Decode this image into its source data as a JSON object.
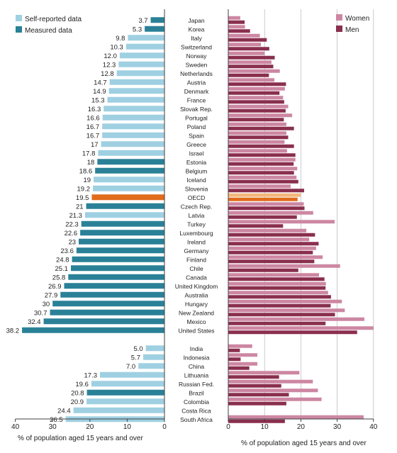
{
  "colors": {
    "self_reported": "#9fd0e2",
    "measured": "#2a8197",
    "oecd_highlight": "#e06c1c",
    "oecd_highlight_light": "#f3b87c",
    "women": "#cd87a2",
    "men": "#8a2f4e",
    "gridline": "#bfbfbf",
    "axis": "#404040"
  },
  "chart_data": [
    {
      "type": "bar",
      "orientation": "horizontal",
      "direction": "right-to-left",
      "legend": [
        "Self-reported data",
        "Measured data"
      ],
      "legend_position": "top-left",
      "xlabel": "% of population aged 15 years and over",
      "xlim": [
        0,
        40
      ],
      "xticks": [
        "40",
        "30",
        "20",
        "10",
        "0"
      ],
      "grid": false,
      "value_labels": true,
      "groups": [
        {
          "countries": [
            "Japan",
            "Korea",
            "Italy",
            "Switzerland",
            "Norway",
            "Sweden",
            "Netherlands",
            "Austria",
            "Denmark",
            "France",
            "Slovak Rep.",
            "Portugal",
            "Poland",
            "Spain",
            "Greece",
            "Israel",
            "Estonia",
            "Belgium",
            "Iceland",
            "Slovenia",
            "OECD",
            "Czech Rep.",
            "Latvia",
            "Turkey",
            "Luxembourg",
            "Ireland",
            "Germany",
            "Finland",
            "Chile",
            "Canada",
            "United Kingdom",
            "Australia",
            "Hungary",
            "New Zealand",
            "Mexico",
            "United States"
          ],
          "value_labels": [
            "3.7",
            "5.3",
            "9.8",
            "10.3",
            "12.0",
            "12.3",
            "12.8",
            "14.7",
            "14.9",
            "15.3",
            "16.3",
            "16.6",
            "16.7",
            "16.7",
            "17",
            "17.8",
            "18",
            "18.6",
            "19",
            "19.2",
            "19.5",
            "21",
            "21.3",
            "22.3",
            "22.6",
            "23",
            "23.6",
            "24.8",
            "25.1",
            "25.8",
            "26.9",
            "27.9",
            "30",
            "30.7",
            "32.4",
            "38.2"
          ],
          "values": [
            3.7,
            5.3,
            9.8,
            10.3,
            12.0,
            12.3,
            12.8,
            14.7,
            14.9,
            15.3,
            16.3,
            16.6,
            16.7,
            16.7,
            17,
            17.8,
            18,
            18.6,
            19,
            19.2,
            19.5,
            21,
            21.3,
            22.3,
            22.6,
            23,
            23.6,
            24.8,
            25.1,
            25.8,
            26.9,
            27.9,
            30,
            30.7,
            32.4,
            38.2
          ],
          "data_type": [
            "measured",
            "measured",
            "self",
            "self",
            "self",
            "self",
            "self",
            "self",
            "self",
            "self",
            "self",
            "self",
            "self",
            "self",
            "self",
            "self",
            "measured",
            "measured",
            "self",
            "self",
            "oecd",
            "measured",
            "self",
            "measured",
            "measured",
            "measured",
            "measured",
            "measured",
            "measured",
            "measured",
            "measured",
            "measured",
            "measured",
            "measured",
            "measured",
            "measured"
          ]
        },
        {
          "countries": [
            "India",
            "Indonesia",
            "China",
            "Lithuania",
            "Russian Fed.",
            "Brazil",
            "Colombia",
            "Costa Rica",
            "South Africa"
          ],
          "value_labels": [
            "5.0",
            "5.7",
            "7.0",
            "17.3",
            "19.6",
            "20.8",
            "20.9",
            "24.4",
            "26.5"
          ],
          "values": [
            5.0,
            5.7,
            7.0,
            17.3,
            19.6,
            20.8,
            20.9,
            24.4,
            26.5
          ],
          "data_type": [
            "self",
            "self",
            "self",
            "self",
            "self",
            "measured",
            "self",
            "self",
            "self"
          ]
        }
      ]
    },
    {
      "type": "bar",
      "orientation": "horizontal",
      "direction": "left-to-right",
      "legend": [
        "Women",
        "Men"
      ],
      "legend_position": "top-right",
      "xlabel": "% of population aged 15 years and over",
      "xlim": [
        0,
        40
      ],
      "xticks": [
        "0",
        "10",
        "20",
        "30",
        "40"
      ],
      "grid": true,
      "series": [
        {
          "name": "Women",
          "values": [
            3.3,
            4.6,
            8.7,
            9.0,
            10.0,
            11.9,
            14.2,
            12.7,
            15.6,
            15.1,
            16.5,
            17.6,
            16.0,
            16.0,
            15.5,
            16.2,
            18.5,
            19.0,
            18.8,
            17.2,
            19.9,
            20.8,
            23.4,
            29.3,
            21.5,
            22.3,
            24.2,
            26.0,
            30.8,
            25.0,
            26.9,
            27.5,
            31.3,
            32.1,
            37.5,
            40.0,
            6.6,
            8.0,
            8.0,
            19.6,
            23.3,
            24.7,
            25.7,
            null,
            37.3
          ]
        },
        {
          "name": "Men",
          "values": [
            4.5,
            6.0,
            10.6,
            11.3,
            12.8,
            12.4,
            11.2,
            15.9,
            14.1,
            15.4,
            15.8,
            15.3,
            18.1,
            16.5,
            18.1,
            18.5,
            18.0,
            18.1,
            19.3,
            20.9,
            19.1,
            21.0,
            18.9,
            15.1,
            23.9,
            24.9,
            23.3,
            23.7,
            19.3,
            26.5,
            26.8,
            28.3,
            28.2,
            29.4,
            26.8,
            35.5,
            3.2,
            3.4,
            5.8,
            14.0,
            14.6,
            16.7,
            16.0,
            null,
            15.6
          ]
        }
      ]
    }
  ]
}
